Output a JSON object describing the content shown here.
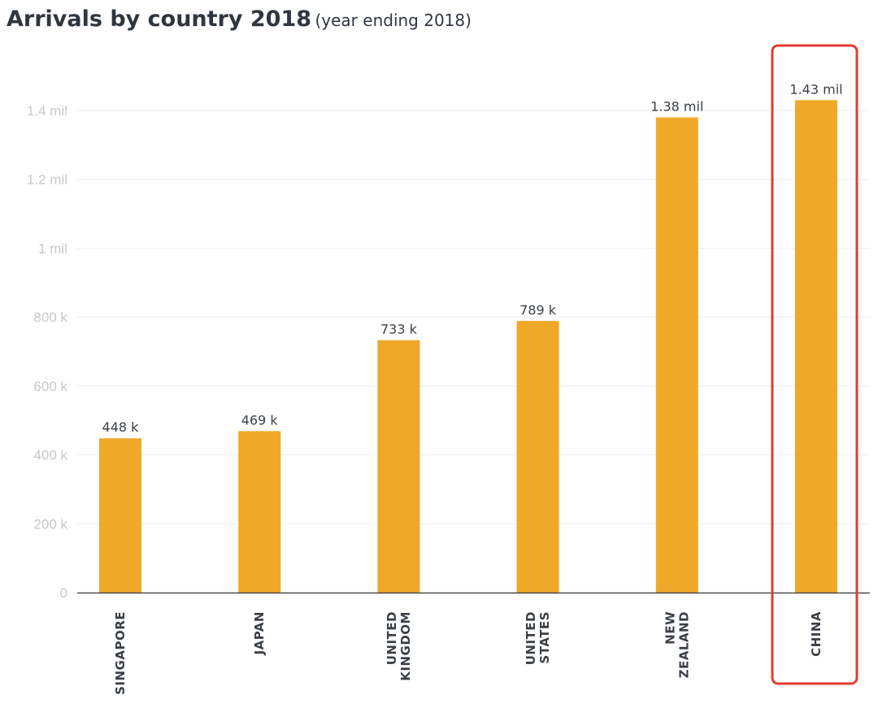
{
  "header": {
    "title": "Arrivals by country 2018",
    "subtitle": "(year ending 2018)"
  },
  "colors": {
    "bar": "#f0a829",
    "highlight_box": "#e23b2e",
    "grid": "#eeeeee",
    "axis": "#4a4a4a"
  },
  "chart_data": {
    "type": "bar",
    "title": "Arrivals by country 2018",
    "subtitle": "(year ending 2018)",
    "xlabel": "",
    "ylabel": "",
    "ylim": [
      0,
      1400000
    ],
    "grid": true,
    "yticks": [
      {
        "value": 0,
        "label": "0"
      },
      {
        "value": 200000,
        "label": "200 k"
      },
      {
        "value": 400000,
        "label": "400 k"
      },
      {
        "value": 600000,
        "label": "600 k"
      },
      {
        "value": 800000,
        "label": "800 k"
      },
      {
        "value": 1000000,
        "label": "1 mil"
      },
      {
        "value": 1200000,
        "label": "1.2 mil"
      },
      {
        "value": 1400000,
        "label": "1.4 mil"
      }
    ],
    "categories": [
      [
        "SINGAPORE"
      ],
      [
        "JAPAN"
      ],
      [
        "UNITED",
        "KINGDOM"
      ],
      [
        "UNITED",
        "STATES"
      ],
      [
        "NEW",
        "ZEALAND"
      ],
      [
        "CHINA"
      ]
    ],
    "values": [
      448000,
      469000,
      733000,
      789000,
      1380000,
      1430000
    ],
    "data_labels": [
      "448 k",
      "469 k",
      "733 k",
      "789 k",
      "1.38 mil",
      "1.43 mil"
    ],
    "highlighted": "CHINA"
  }
}
